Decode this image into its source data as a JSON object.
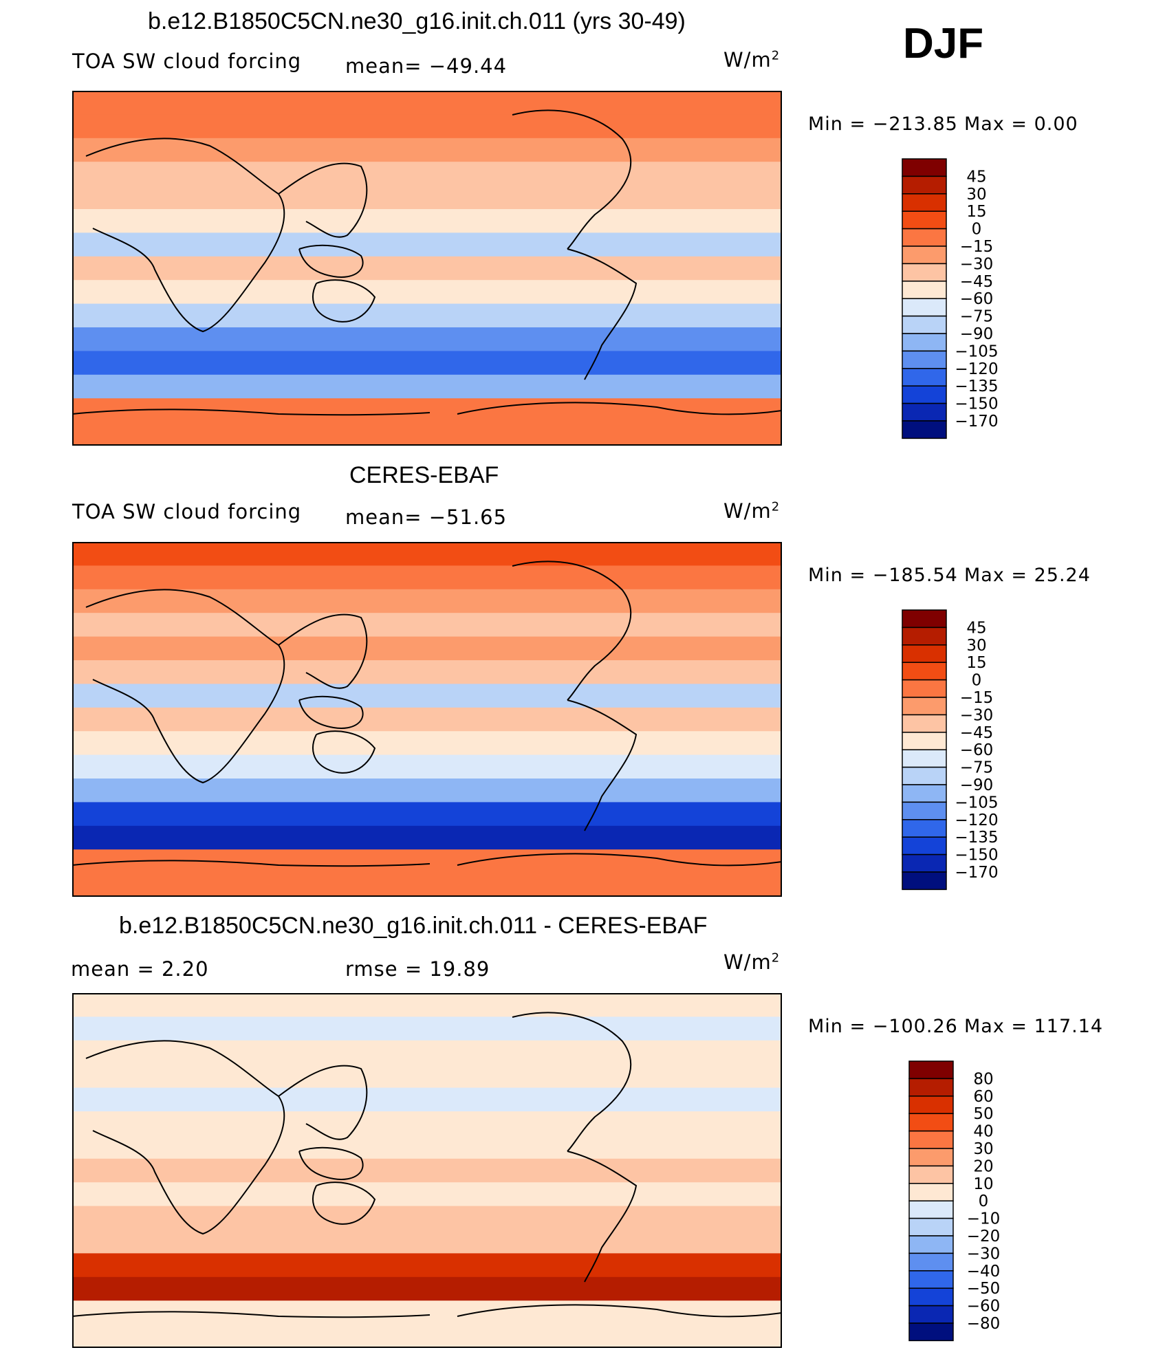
{
  "season": "DJF",
  "panels": [
    {
      "title": "b.e12.B1850C5CN.ne30_g16.init.ch.011 (yrs 30-49)",
      "left_label": "TOA SW cloud forcing",
      "stat_label": "mean= −49.44",
      "units": "W/m",
      "units_sup": "2",
      "min_text": "Min  =  −213.85",
      "max_text": "Max  =     0.00",
      "colorbar": {
        "levels": [
          "45",
          "30",
          "15",
          "0",
          "−15",
          "−30",
          "−45",
          "−60",
          "−75",
          "−90",
          "−105",
          "−120",
          "−135",
          "−150",
          "−170"
        ],
        "colors": [
          "#7f0000",
          "#b51d00",
          "#d93000",
          "#f24d14",
          "#fb7642",
          "#fc9b6c",
          "#fdc4a4",
          "#fee8d3",
          "#dbe9fa",
          "#b9d3f7",
          "#8eb6f4",
          "#5e8ff0",
          "#3067ea",
          "#1443d8",
          "#0a27b3",
          "#000f7e"
        ]
      },
      "map_bands": [
        "#fb7642",
        "#fb7642",
        "#fc9b6c",
        "#fdc4a4",
        "#fdc4a4",
        "#fee8d3",
        "#b9d3f7",
        "#fdc4a4",
        "#fee8d3",
        "#b9d3f7",
        "#5e8ff0",
        "#3067ea",
        "#8eb6f4",
        "#fb7642",
        "#fb7642"
      ]
    },
    {
      "title": "CERES-EBAF",
      "left_label": "TOA SW cloud forcing",
      "stat_label": "mean= −51.65",
      "units": "W/m",
      "units_sup": "2",
      "min_text": "Min  =  −185.54",
      "max_text": "Max  =   25.24",
      "colorbar": {
        "levels": [
          "45",
          "30",
          "15",
          "0",
          "−15",
          "−30",
          "−45",
          "−60",
          "−75",
          "−90",
          "−105",
          "−120",
          "−135",
          "−150",
          "−170"
        ],
        "colors": [
          "#7f0000",
          "#b51d00",
          "#d93000",
          "#f24d14",
          "#fb7642",
          "#fc9b6c",
          "#fdc4a4",
          "#fee8d3",
          "#dbe9fa",
          "#b9d3f7",
          "#8eb6f4",
          "#5e8ff0",
          "#3067ea",
          "#1443d8",
          "#0a27b3",
          "#000f7e"
        ]
      },
      "map_bands": [
        "#f24d14",
        "#fb7642",
        "#fc9b6c",
        "#fdc4a4",
        "#fc9b6c",
        "#fdc4a4",
        "#b9d3f7",
        "#fdc4a4",
        "#fee8d3",
        "#dbe9fa",
        "#8eb6f4",
        "#1443d8",
        "#0a27b3",
        "#fb7642",
        "#fb7642"
      ]
    },
    {
      "title": "b.e12.B1850C5CN.ne30_g16.init.ch.011 - CERES-EBAF",
      "left_label": "mean =    2.20",
      "stat_label": "rmse =   19.89",
      "units": "W/m",
      "units_sup": "2",
      "min_text": "Min  =  −100.26",
      "max_text": "Max  =  117.14",
      "colorbar": {
        "levels": [
          "80",
          "60",
          "50",
          "40",
          "30",
          "20",
          "10",
          "0",
          "−10",
          "−20",
          "−30",
          "−40",
          "−50",
          "−60",
          "−80"
        ],
        "colors": [
          "#7f0000",
          "#b51d00",
          "#d93000",
          "#f24d14",
          "#fb7642",
          "#fc9b6c",
          "#fdc4a4",
          "#fee8d3",
          "#dbe9fa",
          "#b9d3f7",
          "#8eb6f4",
          "#5e8ff0",
          "#3067ea",
          "#1443d8",
          "#0a27b3",
          "#000f7e"
        ]
      },
      "map_bands": [
        "#fee8d3",
        "#dbe9fa",
        "#fee8d3",
        "#fee8d3",
        "#dbe9fa",
        "#fee8d3",
        "#fee8d3",
        "#fdc4a4",
        "#fee8d3",
        "#fdc4a4",
        "#fdc4a4",
        "#d93000",
        "#b51d00",
        "#fee8d3",
        "#fee8d3"
      ]
    }
  ]
}
